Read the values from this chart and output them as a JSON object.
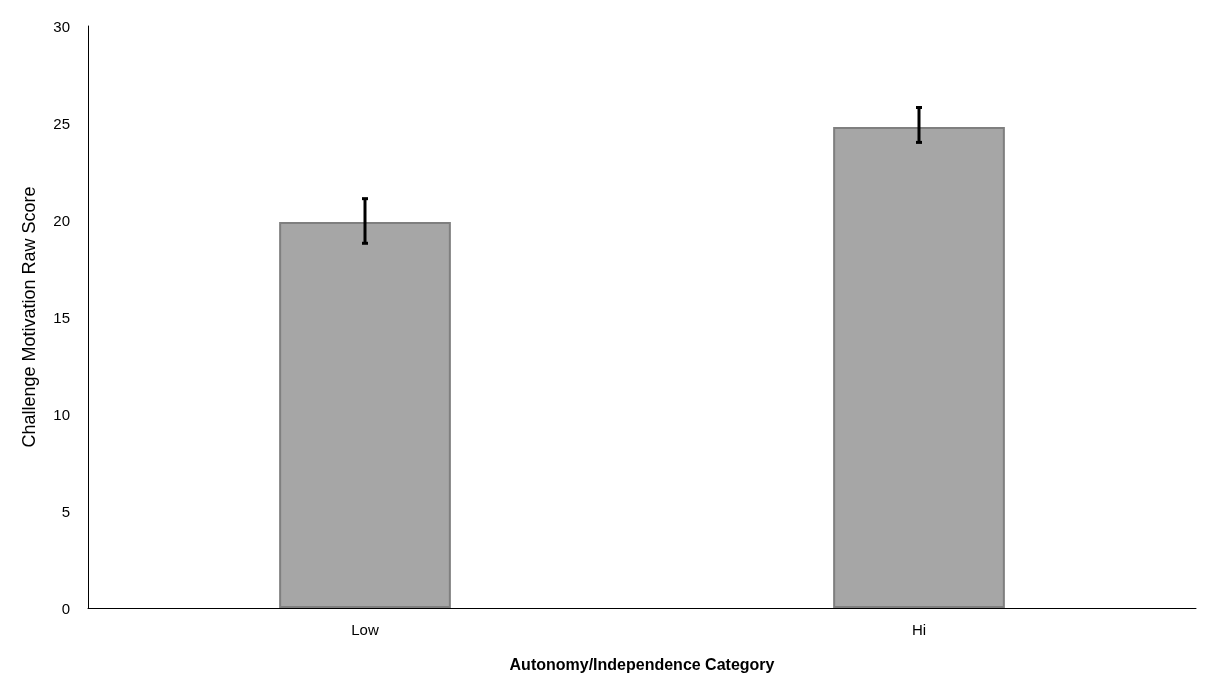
{
  "chart_data": {
    "type": "bar",
    "xlabel": "Autonomy/Independence Category",
    "ylabel": "Challenge Motivation Raw Score",
    "categories": [
      "Low",
      "Hi"
    ],
    "values": [
      19.9,
      24.8
    ],
    "errors": [
      [
        18.8,
        21.1
      ],
      [
        24.0,
        25.8
      ]
    ],
    "color": "#a6a6a6",
    "ylim": [
      0,
      30
    ],
    "yticks": [
      0,
      5,
      10,
      15,
      20,
      25,
      30
    ],
    "grid": false
  }
}
